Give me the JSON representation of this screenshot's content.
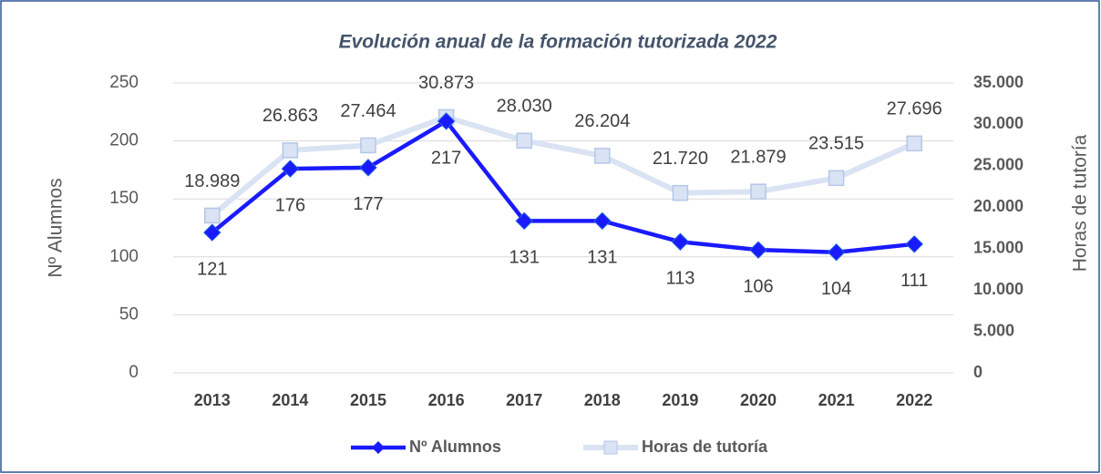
{
  "chart_data": {
    "type": "line",
    "title": "Evolución anual de la formación tutorizada 2022",
    "y_label": "Nº Alumnos",
    "y2_label": "Horas de tutoría",
    "categories": [
      "2013",
      "2014",
      "2015",
      "2016",
      "2017",
      "2018",
      "2019",
      "2020",
      "2021",
      "2022"
    ],
    "series": [
      {
        "name": "Nº Alumnos",
        "color": "#1a1aff",
        "marker": "diamond",
        "values": [
          121,
          176,
          177,
          217,
          131,
          131,
          113,
          106,
          104,
          111
        ]
      },
      {
        "name": "Horas de tutoría",
        "color": "#dae3f3",
        "marker": "square",
        "axis": "y2",
        "values": [
          18989,
          26863,
          27464,
          30873,
          28030,
          26204,
          21720,
          21879,
          23515,
          27696
        ],
        "value_labels": [
          "18.989",
          "26.863",
          "27.464",
          "30.873",
          "28.030",
          "26.204",
          "21.720",
          "21.879",
          "23.515",
          "27.696"
        ]
      }
    ],
    "ylim": [
      0,
      250
    ],
    "yticks": [
      0,
      50,
      100,
      150,
      200,
      250
    ],
    "y2lim": [
      0,
      35000
    ],
    "y2ticks": [
      0,
      {
        "value": 5000,
        "label": "5.000"
      },
      {
        "value": 10000,
        "label": "10.000"
      },
      {
        "value": 15000,
        "label": "15.000"
      },
      {
        "value": 20000,
        "label": "20.000"
      },
      {
        "value": 25000,
        "label": "25.000"
      },
      {
        "value": 30000,
        "label": "30.000"
      },
      {
        "value": 35000,
        "label": "35.000"
      }
    ],
    "grid": true,
    "legend": "bottom"
  }
}
